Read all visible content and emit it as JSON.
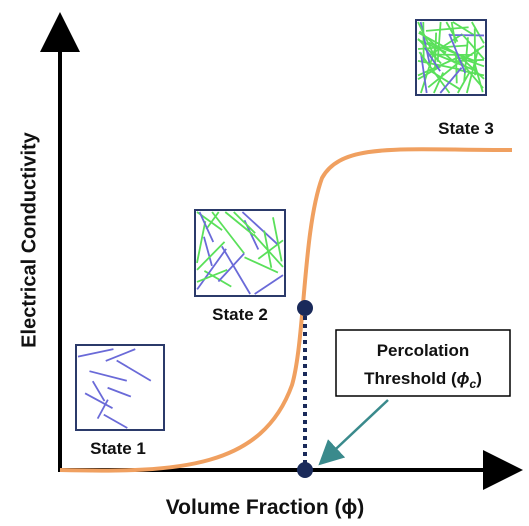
{
  "axes": {
    "y_label": "Electrical Conductivity",
    "x_label": "Volume Fraction (ϕ)"
  },
  "states": [
    {
      "label": "State 1"
    },
    {
      "label": "State 2"
    },
    {
      "label": "State 3"
    }
  ],
  "annotation": {
    "line1": "Percolation",
    "line2": [
      "Threshold (",
      "ϕ",
      "c",
      ")"
    ]
  }
}
